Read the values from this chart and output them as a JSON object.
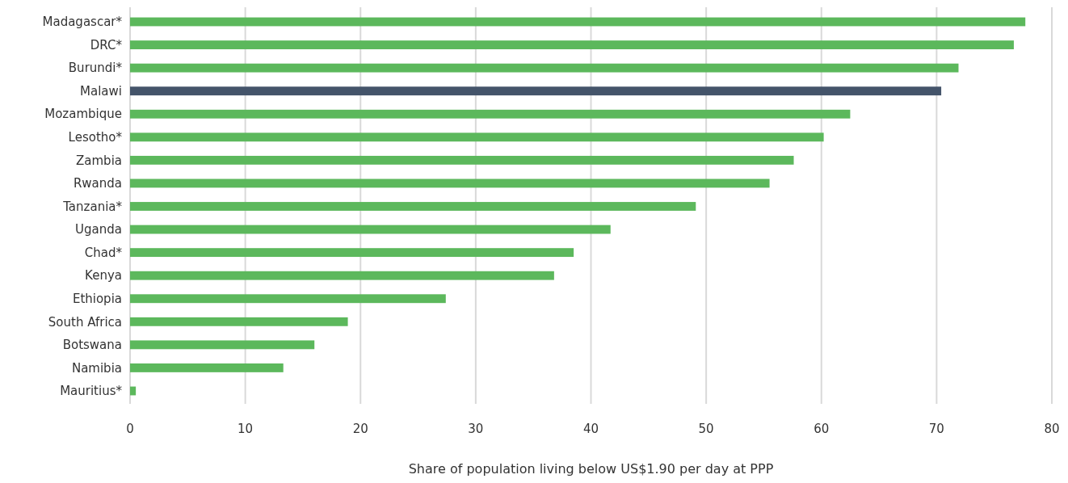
{
  "chart_data": {
    "type": "bar",
    "orientation": "horizontal",
    "xlabel": "Share of population living below US$1.90 per day at PPP",
    "categories": [
      "Madagascar*",
      "DRC*",
      "Burundi*",
      "Malawi",
      "Mozambique",
      "Lesotho*",
      "Zambia",
      "Rwanda",
      "Tanzania*",
      "Uganda",
      "Chad*",
      "Kenya",
      "Ethiopia",
      "South Africa",
      "Botswana",
      "Namibia",
      "Mauritius*"
    ],
    "values": [
      77.7,
      76.7,
      71.9,
      70.4,
      62.5,
      60.2,
      57.6,
      55.5,
      49.1,
      41.7,
      38.5,
      36.8,
      27.4,
      18.9,
      16.0,
      13.3,
      0.5
    ],
    "colors": [
      "#5cb85c",
      "#5cb85c",
      "#5cb85c",
      "#44546a",
      "#5cb85c",
      "#5cb85c",
      "#5cb85c",
      "#5cb85c",
      "#5cb85c",
      "#5cb85c",
      "#5cb85c",
      "#5cb85c",
      "#5cb85c",
      "#5cb85c",
      "#5cb85c",
      "#5cb85c",
      "#5cb85c"
    ],
    "xlim": [
      0,
      80
    ],
    "xticks": [
      0,
      10,
      20,
      30,
      40,
      50,
      60,
      70,
      80
    ],
    "grid": "x"
  }
}
